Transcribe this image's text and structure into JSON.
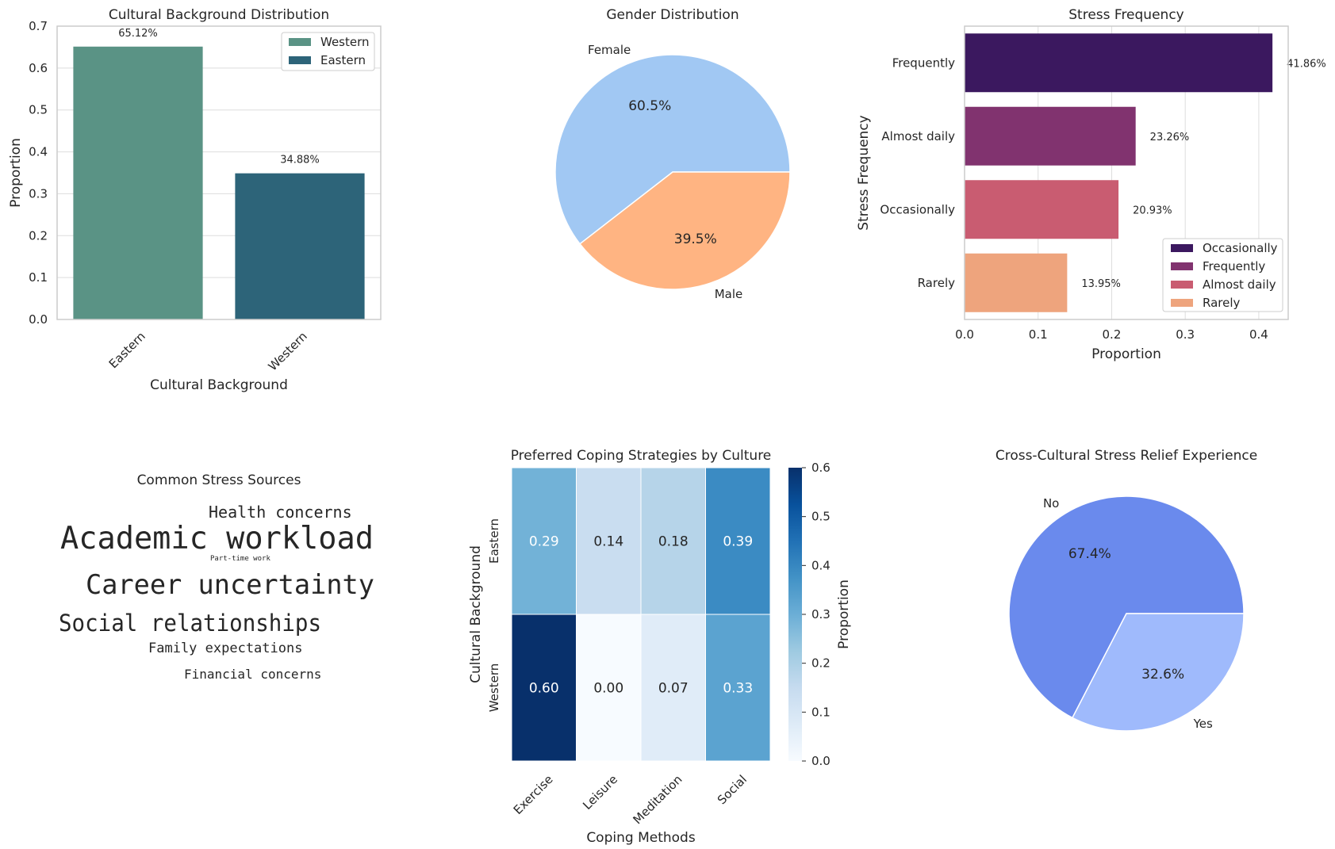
{
  "chart_data": [
    {
      "type": "bar",
      "title": "Cultural Background Distribution",
      "xlabel": "Cultural Background",
      "ylabel": "Proportion",
      "ylim": [
        0,
        0.7
      ],
      "yticks": [
        "0.0",
        "0.1",
        "0.2",
        "0.3",
        "0.4",
        "0.5",
        "0.6",
        "0.7"
      ],
      "categories": [
        "Eastern",
        "Western"
      ],
      "values": [
        0.6512,
        0.3488
      ],
      "labels": [
        "65.12%",
        "34.88%"
      ],
      "colors": [
        "#5a9385",
        "#2d6479"
      ],
      "legend": {
        "position": "top-right",
        "entries": [
          "Western",
          "Eastern"
        ],
        "colors": [
          "#5a9385",
          "#2d6479"
        ]
      },
      "grid": true
    },
    {
      "type": "pie",
      "title": "Gender Distribution",
      "slices": [
        "Female",
        "Male"
      ],
      "values": [
        60.5,
        39.5
      ],
      "labels": [
        "60.5%",
        "39.5%"
      ],
      "colors": [
        "#a1c8f3",
        "#ffb482"
      ]
    },
    {
      "type": "bar",
      "orientation": "horizontal",
      "title": "Stress Frequency",
      "xlabel": "Proportion",
      "ylabel": "Stress Frequency",
      "xlim": [
        0,
        0.44
      ],
      "xticks": [
        "0.0",
        "0.1",
        "0.2",
        "0.3",
        "0.4"
      ],
      "categories": [
        "Frequently",
        "Almost daily",
        "Occasionally",
        "Rarely"
      ],
      "values": [
        0.4186,
        0.2326,
        0.2093,
        0.1395
      ],
      "labels": [
        "41.86%",
        "23.26%",
        "20.93%",
        "13.95%"
      ],
      "colors": [
        "#3b185f",
        "#81336f",
        "#c95c71",
        "#eea47d"
      ],
      "legend": {
        "position": "lower-right",
        "entries": [
          "Occasionally",
          "Frequently",
          "Almost daily",
          "Rarely"
        ],
        "colors": [
          "#3b185f",
          "#81336f",
          "#c95c71",
          "#eea47d"
        ]
      },
      "grid": true
    },
    {
      "type": "wordcloud",
      "title": "Common Stress Sources",
      "words": [
        {
          "text": "Health concerns",
          "color": "#f0cbbb"
        },
        {
          "text": "Academic workload",
          "color": "#b94a48"
        },
        {
          "text": "Part-time work",
          "color": "#e69a7e"
        },
        {
          "text": "Career uncertainty",
          "color": "#7596d2"
        },
        {
          "text": "Social relationships",
          "color": "#f0b9a1"
        },
        {
          "text": "Family expectations",
          "color": "#d9685b"
        },
        {
          "text": "Financial concerns",
          "color": "#9dc0e6"
        }
      ]
    },
    {
      "type": "heatmap",
      "title": "Preferred Coping Strategies by Culture",
      "xlabel": "Coping Methods",
      "ylabel": "Cultural Background",
      "x": [
        "Exercise",
        "Leisure",
        "Meditation",
        "Social"
      ],
      "y": [
        "Eastern",
        "Western"
      ],
      "values": [
        [
          0.29,
          0.14,
          0.18,
          0.39
        ],
        [
          0.6,
          0.0,
          0.07,
          0.33
        ]
      ],
      "labels": [
        [
          "0.29",
          "0.14",
          "0.18",
          "0.39"
        ],
        [
          "0.60",
          "0.00",
          "0.07",
          "0.33"
        ]
      ],
      "colorbar": {
        "label": "Proportion",
        "range": [
          0,
          0.6
        ],
        "ticks": [
          "0.0",
          "0.1",
          "0.2",
          "0.3",
          "0.4",
          "0.5",
          "0.6"
        ]
      }
    },
    {
      "type": "pie",
      "title": "Cross-Cultural Stress Relief Experience",
      "slices": [
        "No",
        "Yes"
      ],
      "values": [
        67.4,
        32.6
      ],
      "labels": [
        "67.4%",
        "32.6%"
      ],
      "colors": [
        "#6a8aed",
        "#9fbafc"
      ]
    }
  ]
}
